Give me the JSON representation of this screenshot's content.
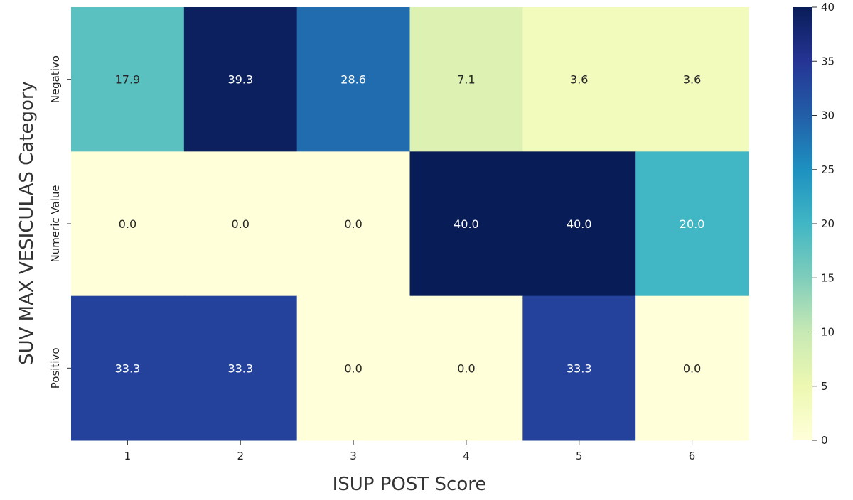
{
  "chart_data": {
    "type": "heatmap",
    "xlabel": "ISUP POST Score",
    "ylabel": "SUV MAX VESICULAS Category",
    "x_categories": [
      "1",
      "2",
      "3",
      "4",
      "5",
      "6"
    ],
    "y_categories": [
      "Negativo",
      "Numeric Value",
      "Positivo"
    ],
    "values": [
      [
        17.9,
        39.3,
        28.6,
        7.1,
        3.6,
        3.6
      ],
      [
        0.0,
        0.0,
        0.0,
        40.0,
        40.0,
        20.0
      ],
      [
        33.3,
        33.3,
        0.0,
        0.0,
        33.3,
        0.0
      ]
    ],
    "value_labels": [
      [
        "17.9",
        "39.3",
        "28.6",
        "7.1",
        "3.6",
        "3.6"
      ],
      [
        "0.0",
        "0.0",
        "0.0",
        "40.0",
        "40.0",
        "20.0"
      ],
      [
        "33.3",
        "33.3",
        "0.0",
        "0.0",
        "33.3",
        "0.0"
      ]
    ],
    "colormap": "YlGnBu",
    "colorbar": {
      "vmin": 0,
      "vmax": 40,
      "ticks": [
        0,
        5,
        10,
        15,
        20,
        25,
        30,
        35,
        40
      ],
      "tick_labels": [
        "0",
        "5",
        "10",
        "15",
        "20",
        "25",
        "30",
        "35",
        "40"
      ]
    },
    "colormap_stops": [
      "#ffffd9",
      "#edf8b1",
      "#c7e9b4",
      "#7fcdbb",
      "#41b6c4",
      "#1d91c0",
      "#225ea8",
      "#253494",
      "#081d58"
    ],
    "text_color_dark": "#262626",
    "text_color_light": "#ffffff"
  }
}
